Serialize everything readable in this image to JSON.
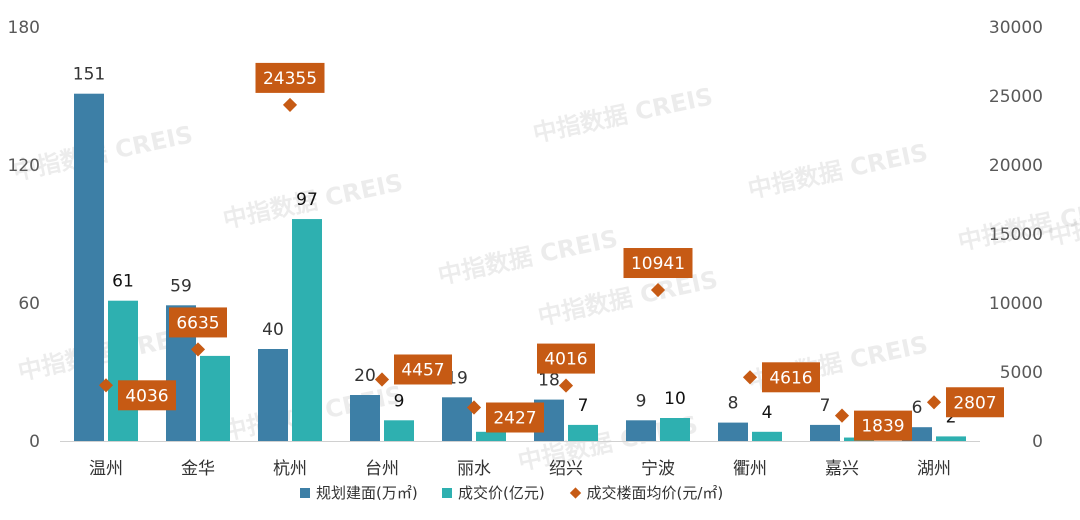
{
  "chart_data": {
    "type": "bar",
    "categories": [
      "温州",
      "金华",
      "杭州",
      "台州",
      "丽水",
      "绍兴",
      "宁波",
      "衢州",
      "嘉兴",
      "湖州"
    ],
    "series": [
      {
        "name": "规划建面(万㎡)",
        "kind": "bar",
        "axis": "left",
        "values": [
          151,
          59,
          40,
          20,
          19,
          18,
          9,
          8,
          7,
          6
        ],
        "labels": [
          "151",
          "59",
          "40",
          "20",
          "19",
          "18",
          "9",
          "8",
          "7",
          "6"
        ]
      },
      {
        "name": "成交价(亿元)",
        "kind": "bar",
        "axis": "left",
        "values": [
          61,
          37,
          96.5,
          9,
          4,
          7,
          10,
          4,
          1.5,
          2
        ],
        "labels": [
          "61",
          "",
          "97",
          "9",
          "",
          "7",
          "10",
          "4",
          "",
          "2"
        ]
      },
      {
        "name": "成交楼面均价(元/㎡)",
        "kind": "point",
        "axis": "right",
        "values": [
          4036,
          6635,
          24355,
          4457,
          2427,
          4016,
          10941,
          4616,
          1839,
          2807
        ],
        "labels": [
          "4036",
          "6635",
          "24355",
          "4457",
          "2427",
          "4016",
          "10941",
          "4616",
          "1839",
          "2807"
        ]
      }
    ],
    "y_left": {
      "range": [
        0,
        180
      ],
      "ticks": [
        "0",
        "60",
        "120",
        "180"
      ]
    },
    "y_right": {
      "range": [
        0,
        30000
      ],
      "ticks": [
        "0",
        "5000",
        "10000",
        "15000",
        "20000",
        "25000",
        "30000"
      ]
    },
    "grid": false,
    "legend_position": "bottom",
    "colors": {
      "bar1": "#3d7fa6",
      "bar2": "#2eb0b0",
      "point": "#c65a14",
      "label_bg": "#c65a14",
      "axis_text": "#595959"
    },
    "watermark": "中指数据 CREIS"
  }
}
